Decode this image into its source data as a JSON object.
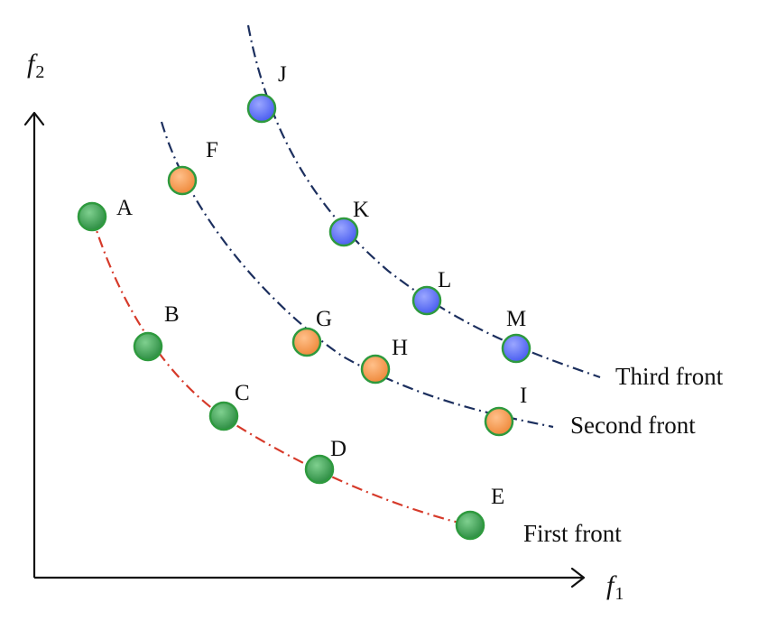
{
  "axes": {
    "x_label": "f",
    "x_subscript": "1",
    "y_label": "f",
    "y_subscript": "2"
  },
  "fronts": [
    {
      "label": "First front",
      "curve_color": "#d63a2a",
      "point_color": "#3fa055",
      "points": [
        "A",
        "B",
        "C",
        "D",
        "E"
      ]
    },
    {
      "label": "Second front",
      "curve_color": "#1c2f5e",
      "point_color": "#f39a55",
      "points": [
        "F",
        "G",
        "H",
        "I"
      ]
    },
    {
      "label": "Third front",
      "curve_color": "#1c2f5e",
      "point_color": "#5a6cf0",
      "points": [
        "J",
        "K",
        "L",
        "M"
      ]
    }
  ],
  "colors": {
    "axis": "#111111",
    "point_outline": "#2e9a3e"
  }
}
